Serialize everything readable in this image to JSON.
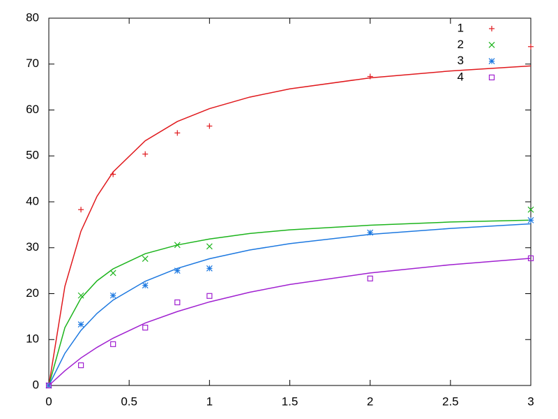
{
  "chart_data": {
    "type": "scatter",
    "x": [
      0,
      0.2,
      0.4,
      0.6,
      0.8,
      1,
      2,
      3
    ],
    "fit_x": [
      0,
      0.1,
      0.2,
      0.3,
      0.4,
      0.6,
      0.8,
      1,
      1.25,
      1.5,
      2,
      2.5,
      3
    ],
    "series": [
      {
        "name": "1",
        "color": "#e0181c",
        "marker": "plus",
        "values": [
          0,
          38.3,
          46,
          50.4,
          55,
          56.5,
          67.3,
          73.8
        ],
        "fit": [
          0,
          21.6,
          33.6,
          41.2,
          46.5,
          53.3,
          57.5,
          60.3,
          62.8,
          64.6,
          67.0,
          68.5,
          69.6
        ]
      },
      {
        "name": "2",
        "color": "#1cb41c",
        "marker": "cross",
        "values": [
          0,
          19.6,
          24.5,
          27.6,
          30.6,
          30.3,
          null,
          38.3
        ],
        "fit": [
          0,
          12.6,
          19.0,
          22.8,
          25.4,
          28.7,
          30.6,
          31.9,
          33.1,
          33.9,
          34.9,
          35.6,
          36.0
        ]
      },
      {
        "name": "3",
        "color": "#1c78e0",
        "marker": "star",
        "values": [
          0,
          13.3,
          19.6,
          21.8,
          25,
          25.5,
          33.3,
          36
        ],
        "fit": [
          0,
          7.0,
          12.0,
          15.7,
          18.6,
          22.7,
          25.5,
          27.6,
          29.5,
          30.9,
          32.9,
          34.2,
          35.2
        ]
      },
      {
        "name": "4",
        "color": "#a020d0",
        "marker": "square",
        "values": [
          0,
          4.4,
          9,
          12.6,
          18.1,
          19.5,
          23.3,
          27.7
        ],
        "fit": [
          0,
          3.2,
          6.0,
          8.3,
          10.3,
          13.6,
          16.1,
          18.2,
          20.3,
          22.0,
          24.5,
          26.3,
          27.7
        ]
      }
    ],
    "xlim": [
      0,
      3
    ],
    "xticks": [
      0,
      0.5,
      1,
      1.5,
      2,
      2.5,
      3
    ],
    "ylim": [
      0,
      80
    ],
    "yticks": [
      0,
      10,
      20,
      30,
      40,
      50,
      60,
      70,
      80
    ],
    "legend": "top-right"
  }
}
